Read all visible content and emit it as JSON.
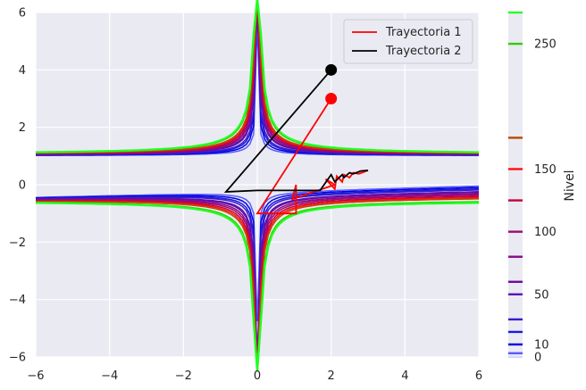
{
  "chart_data": {
    "type": "line",
    "subtype": "contour",
    "background": "#eaeaf2",
    "grid": true,
    "xlim": [
      -6,
      6
    ],
    "ylim": [
      -6,
      6
    ],
    "xticks": [
      -6,
      -4,
      -2,
      0,
      2,
      4,
      6
    ],
    "yticks": [
      -6,
      -4,
      -2,
      0,
      2,
      4,
      6
    ],
    "legend_position": "top-right",
    "series": [
      {
        "name": "Trayectoria 1",
        "color": "#ff0000",
        "x": [
          2.0,
          0.0,
          1.05,
          1.05,
          0.95,
          2.1,
          1.85,
          2.1,
          2.15,
          2.3,
          2.35,
          2.5,
          2.6,
          2.75,
          3.0
        ],
        "y": [
          3.0,
          -1.0,
          -1.0,
          0.0,
          -0.5,
          0.0,
          0.2,
          -0.15,
          0.3,
          0.1,
          0.35,
          0.25,
          0.42,
          0.38,
          0.5
        ]
      },
      {
        "name": "Trayectoria 2",
        "color": "#000000",
        "x": [
          2.0,
          -0.85,
          0.0,
          0.6,
          1.7,
          2.0,
          2.1,
          2.3,
          2.35,
          2.5,
          2.6,
          2.8,
          3.0
        ],
        "y": [
          4.0,
          -0.25,
          -0.2,
          -0.2,
          -0.2,
          0.35,
          0.1,
          0.35,
          0.25,
          0.42,
          0.38,
          0.48,
          0.5
        ]
      }
    ],
    "start_points": [
      {
        "x": 2,
        "y": 3,
        "color": "#ff0000"
      },
      {
        "x": 2,
        "y": 4,
        "color": "#000000"
      }
    ],
    "contour_levels": [
      0,
      3,
      10,
      20,
      30,
      50,
      60,
      80,
      100,
      125,
      150,
      175,
      250,
      275
    ],
    "contour_colors": [
      "#d8d8f8",
      "#5a5aff",
      "#0000e0",
      "#1a1add",
      "#3a1ccc",
      "#5a10b8",
      "#6c0a9e",
      "#8a0a8a",
      "#9f0a6e",
      "#c4003d",
      "#ff1010",
      "#b84a00",
      "#33cc00",
      "#22ff22"
    ],
    "colorbar": {
      "label": "Nivel",
      "ticks": [
        0,
        10,
        50,
        100,
        150,
        250
      ],
      "tick_labels": [
        "0",
        "10",
        "50",
        "100",
        "150",
        "250"
      ]
    }
  }
}
